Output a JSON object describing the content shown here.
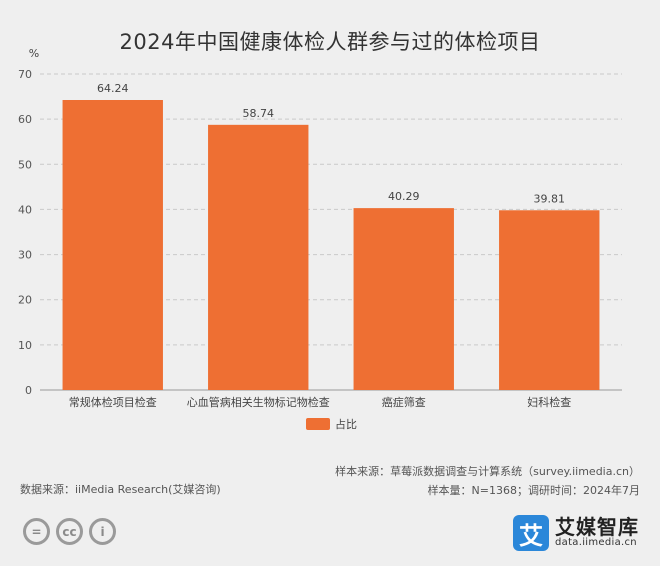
{
  "title": "2024年中国健康体检人群参与过的体检项目",
  "chart_data": {
    "type": "bar",
    "title": "2024年中国健康体检人群参与过的体检项目",
    "ylabel": "%",
    "xlabel": "",
    "categories": [
      "常规体检项目检查",
      "心血管病相关生物标记物检查",
      "癌症筛查",
      "妇科检查"
    ],
    "series": [
      {
        "name": "占比",
        "values": [
          64.24,
          58.74,
          40.29,
          39.81
        ]
      }
    ],
    "ylim": [
      0,
      70
    ],
    "yticks": [
      0,
      10,
      20,
      30,
      40,
      50,
      60,
      70
    ],
    "grid": true,
    "legend_position": "bottom-center",
    "bar_color": "#ee6f33"
  },
  "legend": {
    "label": "占比"
  },
  "footer": {
    "source": "数据来源：iiMedia Research(艾媒咨询)",
    "sample_source": "样本来源：草莓派数据调查与计算系统（survey.iimedia.cn）",
    "sample_info": "样本量：N=1368；调研时间：2024年7月"
  },
  "brand": {
    "name": "艾媒智库",
    "url": "data.iimedia.cn",
    "logo_char": "艾"
  },
  "license_icons": [
    "=",
    "cc",
    "i"
  ]
}
